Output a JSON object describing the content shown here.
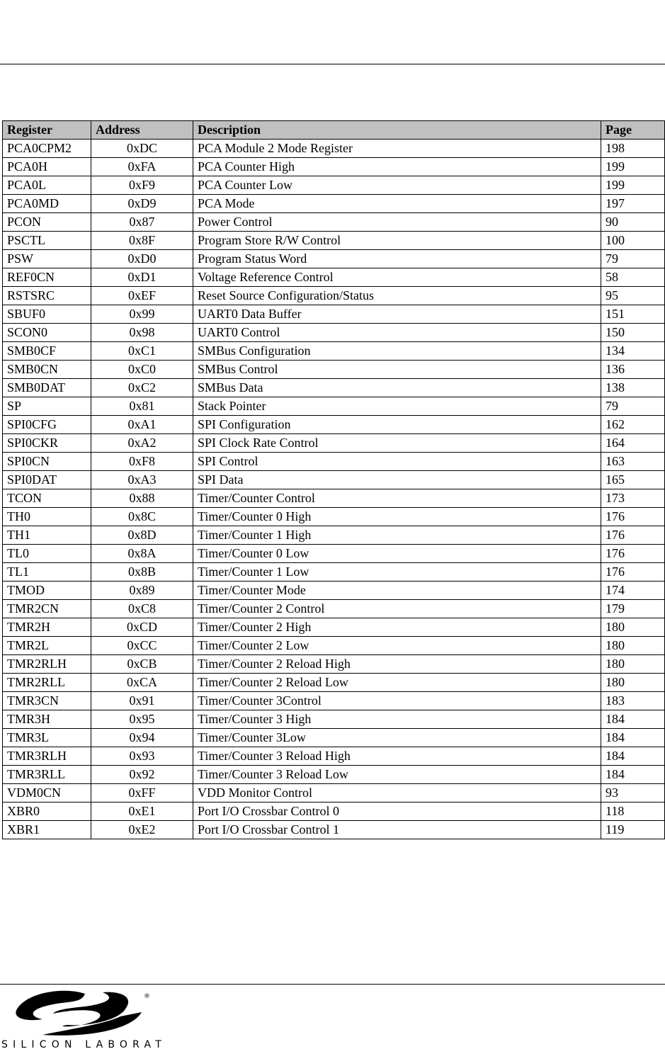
{
  "table": {
    "headers": [
      "Register",
      "Address",
      "Description",
      "Page"
    ],
    "rows": [
      [
        "PCA0CPM2",
        "0xDC",
        "PCA Module 2 Mode Register",
        "198"
      ],
      [
        "PCA0H",
        "0xFA",
        "PCA Counter High",
        "199"
      ],
      [
        "PCA0L",
        "0xF9",
        "PCA Counter Low",
        "199"
      ],
      [
        "PCA0MD",
        "0xD9",
        "PCA Mode",
        "197"
      ],
      [
        "PCON",
        "0x87",
        "Power Control",
        "90"
      ],
      [
        "PSCTL",
        "0x8F",
        "Program Store R/W Control",
        "100"
      ],
      [
        "PSW",
        "0xD0",
        "Program Status Word",
        "79"
      ],
      [
        "REF0CN",
        "0xD1",
        "Voltage Reference Control",
        "58"
      ],
      [
        "RSTSRC",
        "0xEF",
        "Reset Source Configuration/Status",
        "95"
      ],
      [
        "SBUF0",
        "0x99",
        "UART0 Data Buffer",
        "151"
      ],
      [
        "SCON0",
        "0x98",
        "UART0 Control",
        "150"
      ],
      [
        "SMB0CF",
        "0xC1",
        "SMBus Configuration",
        "134"
      ],
      [
        "SMB0CN",
        "0xC0",
        "SMBus Control",
        "136"
      ],
      [
        "SMB0DAT",
        "0xC2",
        "SMBus Data",
        "138"
      ],
      [
        "SP",
        "0x81",
        "Stack Pointer",
        "79"
      ],
      [
        "SPI0CFG",
        "0xA1",
        "SPI Configuration",
        "162"
      ],
      [
        "SPI0CKR",
        "0xA2",
        "SPI Clock Rate Control",
        "164"
      ],
      [
        "SPI0CN",
        "0xF8",
        "SPI Control",
        "163"
      ],
      [
        "SPI0DAT",
        "0xA3",
        "SPI Data",
        "165"
      ],
      [
        "TCON",
        "0x88",
        "Timer/Counter Control",
        "173"
      ],
      [
        "TH0",
        "0x8C",
        "Timer/Counter 0 High",
        "176"
      ],
      [
        "TH1",
        "0x8D",
        "Timer/Counter 1 High",
        "176"
      ],
      [
        "TL0",
        "0x8A",
        "Timer/Counter 0 Low",
        "176"
      ],
      [
        "TL1",
        "0x8B",
        "Timer/Counter 1 Low",
        "176"
      ],
      [
        "TMOD",
        "0x89",
        "Timer/Counter Mode",
        "174"
      ],
      [
        "TMR2CN",
        "0xC8",
        "Timer/Counter 2 Control",
        "179"
      ],
      [
        "TMR2H",
        "0xCD",
        "Timer/Counter 2 High",
        "180"
      ],
      [
        "TMR2L",
        "0xCC",
        "Timer/Counter 2 Low",
        "180"
      ],
      [
        "TMR2RLH",
        "0xCB",
        "Timer/Counter 2 Reload High",
        "180"
      ],
      [
        "TMR2RLL",
        "0xCA",
        "Timer/Counter 2 Reload Low",
        "180"
      ],
      [
        "TMR3CN",
        "0x91",
        "Timer/Counter 3Control",
        "183"
      ],
      [
        "TMR3H",
        "0x95",
        "Timer/Counter 3 High",
        "184"
      ],
      [
        "TMR3L",
        "0x94",
        "Timer/Counter 3Low",
        "184"
      ],
      [
        "TMR3RLH",
        "0x93",
        "Timer/Counter 3 Reload High",
        "184"
      ],
      [
        "TMR3RLL",
        "0x92",
        "Timer/Counter 3 Reload Low",
        "184"
      ],
      [
        "VDM0CN",
        "0xFF",
        "VDD Monitor Control",
        "93"
      ],
      [
        "XBR0",
        "0xE1",
        "Port I/O Crossbar Control 0",
        "118"
      ],
      [
        "XBR1",
        "0xE2",
        "Port I/O Crossbar Control 1",
        "119"
      ]
    ]
  },
  "footer": {
    "logo_text": "SILICON LABORATORIES",
    "registered": "®"
  },
  "colors": {
    "header_bg": "#c0c0c0"
  }
}
